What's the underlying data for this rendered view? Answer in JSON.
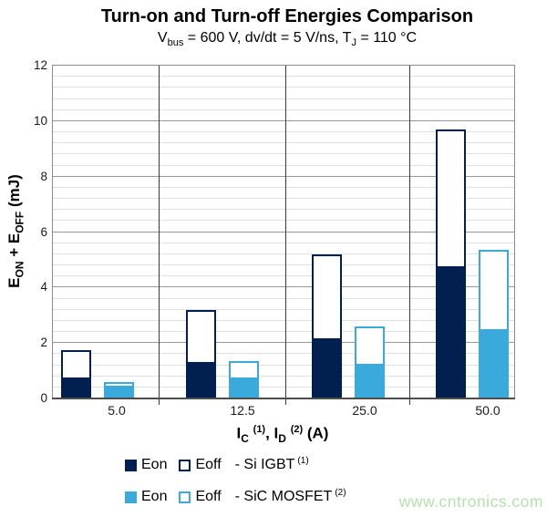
{
  "title": "Turn-on and Turn-off Energies Comparison",
  "subtitle": {
    "t1": "V",
    "s1": "bus",
    "t2": " = 600 V, dv/dt = 5 V/ns, T",
    "s2": "J",
    "t3": " = 110 °C"
  },
  "y_axis": {
    "t1": "E",
    "s1": "ON",
    "t2": " + E",
    "s2": "OFF",
    "t3": " (mJ)",
    "ticks": [
      "0",
      "2",
      "4",
      "6",
      "8",
      "10",
      "12"
    ]
  },
  "x_axis": {
    "t1": "I",
    "s1": "C",
    "sup1": "(1)",
    "t2": ", I",
    "s2": "D",
    "sup2": "(2)",
    "t3": " (A)",
    "tick_labels": [
      "5.0",
      "12.5",
      "25.0",
      "50.0"
    ]
  },
  "legend": {
    "rows": [
      {
        "eon": "Eon",
        "eoff": "Eoff",
        "device": "- Si IGBT",
        "sup": "(1)"
      },
      {
        "eon": "Eon",
        "eoff": "Eoff",
        "device": "- SiC MOSFET",
        "sup": "(2)"
      }
    ]
  },
  "watermark": "www.cntronics.com",
  "colors": {
    "si_igbt_navy": "#011f4f",
    "sic_mosfet_blue": "#3aaadc",
    "eoff_fill": "#ffffff",
    "watermark_green": "#b5e2ad",
    "grid_minor": "#e0e0e0",
    "grid_major": "#999999",
    "plot_border": "#8c8c8c",
    "axis_line": "#4d4d4d",
    "divider": "#3a3a3a"
  },
  "chart_data": {
    "type": "bar",
    "stacked": true,
    "title": "Turn-on and Turn-off Energies Comparison",
    "subtitle": "Vbus = 600 V, dv/dt = 5 V/ns, TJ = 110 °C",
    "xlabel": "IC (1), ID (2) (A)",
    "ylabel": "EON + EOFF (mJ)",
    "categories": [
      "5.0",
      "12.5",
      "25.0",
      "50.0"
    ],
    "series": [
      {
        "name": "Eon - Si IGBT",
        "color": "#011f4f",
        "values": [
          0.7,
          1.25,
          2.1,
          4.7
        ]
      },
      {
        "name": "Eoff - Si IGBT",
        "color": "#ffffff",
        "border": "#011f4f",
        "values": [
          1.05,
          1.95,
          3.1,
          5.0
        ]
      },
      {
        "name": "Eon - SiC MOSFET",
        "color": "#3aaadc",
        "values": [
          0.4,
          0.7,
          1.2,
          2.45
        ]
      },
      {
        "name": "Eoff - SiC MOSFET",
        "color": "#ffffff",
        "border": "#3aaadc",
        "values": [
          0.2,
          0.65,
          1.4,
          2.9
        ]
      }
    ],
    "totals": {
      "si_igbt": [
        1.75,
        3.2,
        5.2,
        9.7
      ],
      "sic_mosfet": [
        0.6,
        1.35,
        2.6,
        5.35
      ]
    },
    "ylim": [
      0,
      12
    ],
    "y_major_step": 2,
    "y_minor_step": 0.4,
    "grid": true,
    "legend_position": "bottom"
  }
}
